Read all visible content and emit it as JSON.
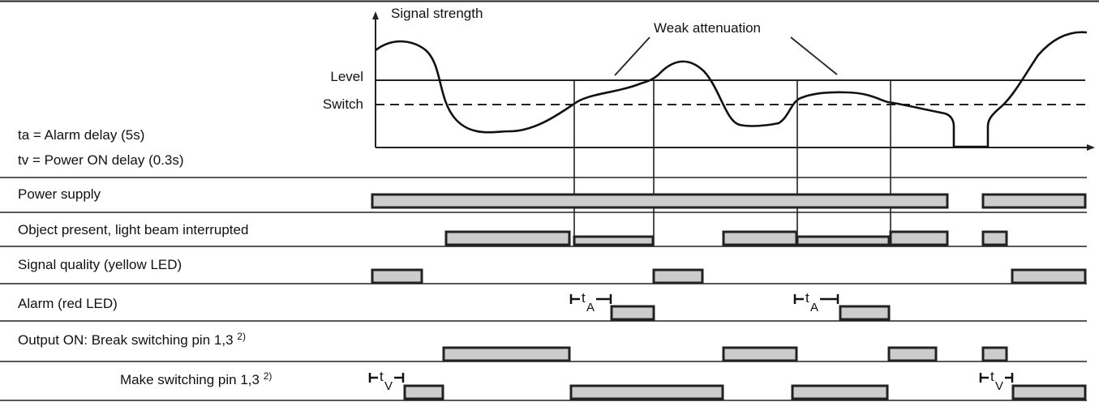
{
  "graph": {
    "y_axis_label": "Signal strength",
    "level_label": "Level",
    "switch_label": "Switch",
    "annotation": "Weak attenuation"
  },
  "legend": {
    "ta": "ta = Alarm delay (5s)",
    "tv": "tv = Power ON delay (0.3s)"
  },
  "rows": [
    {
      "label": "Power supply"
    },
    {
      "label": "Object present, light beam interrupted"
    },
    {
      "label": "Signal quality (yellow LED)"
    },
    {
      "label": "Alarm (red LED)"
    },
    {
      "label": "Output ON: Break switching pin 1,3",
      "footnote": "2)"
    },
    {
      "label": "Make switching pin 1,3",
      "footnote": "2)"
    }
  ],
  "time_markers": {
    "ta": {
      "letter": "t",
      "sub": "A"
    },
    "tv": {
      "letter": "t",
      "sub": "V"
    }
  },
  "colors": {
    "bar_fill": "#cccccc",
    "line": "#222222"
  }
}
